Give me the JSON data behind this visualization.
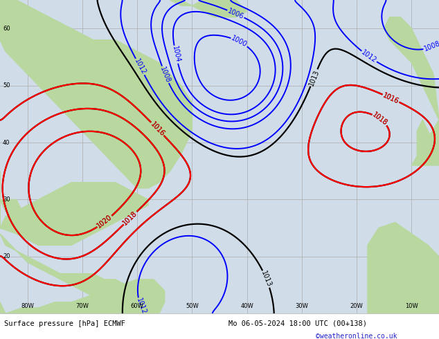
{
  "title_left": "Surface pressure [hPa] ECMWF",
  "title_right": "Mo 06-05-2024 18:00 UTC (00+138)",
  "copyright": "©weatheronline.co.uk",
  "bg_color": "#d4e8d4",
  "ocean_color": "#d0dce8",
  "land_color": "#b8d8a0",
  "grid_color": "#aaaaaa",
  "lon_min": -85,
  "lon_max": -5,
  "lat_min": 10,
  "lat_max": 65,
  "lon_ticks": [
    -80,
    -70,
    -60,
    -50,
    -40,
    -30,
    -20,
    -10
  ],
  "lat_ticks": [
    20,
    30,
    40,
    50,
    60
  ]
}
